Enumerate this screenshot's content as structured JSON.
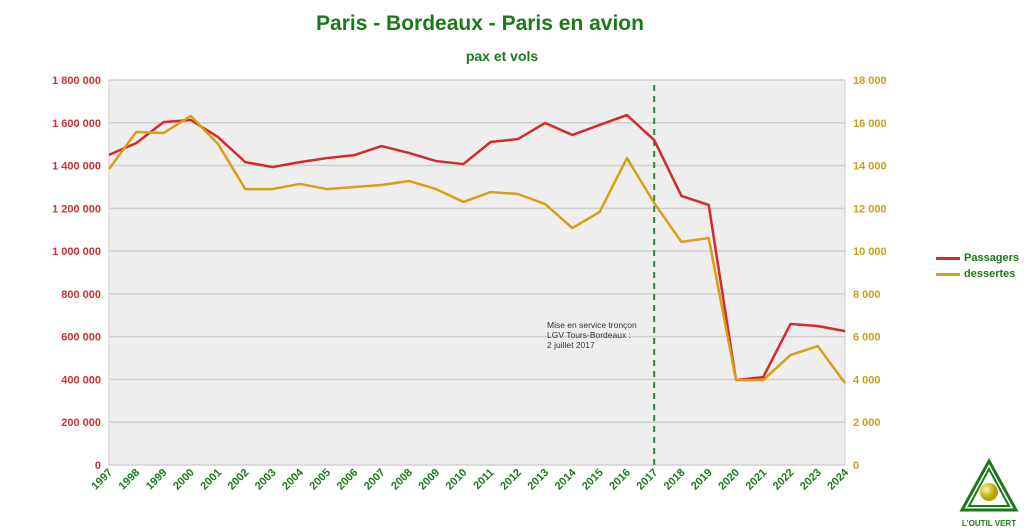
{
  "chart_data": {
    "type": "line",
    "title": "Paris - Bordeaux - Paris en avion",
    "subtitle": "pax et vols",
    "x": [
      "1997",
      "1998",
      "1999",
      "2000",
      "2001",
      "2002",
      "2003",
      "2004",
      "2005",
      "2006",
      "2007",
      "2008",
      "2009",
      "2010",
      "2011",
      "2012",
      "2013",
      "2014",
      "2015",
      "2016",
      "2017",
      "2018",
      "2019",
      "2020",
      "2021",
      "2022",
      "2023",
      "2024"
    ],
    "series": [
      {
        "name": "Passagers",
        "axis": "left",
        "color": "#d42a2a",
        "values": [
          1450000,
          1505000,
          1603000,
          1613000,
          1533000,
          1416000,
          1393000,
          1416000,
          1435000,
          1449000,
          1491000,
          1459000,
          1421000,
          1407000,
          1510000,
          1524000,
          1599000,
          1543000,
          1590000,
          1636000,
          1519000,
          1258000,
          1216000,
          397000,
          411000,
          659000,
          650000,
          626000
        ]
      },
      {
        "name": "dessertes",
        "axis": "right",
        "color": "#d4a017",
        "values": [
          13840,
          15570,
          15520,
          16320,
          15010,
          12900,
          12900,
          13140,
          12900,
          13000,
          13090,
          13280,
          12900,
          12300,
          12760,
          12670,
          12200,
          11080,
          11830,
          14350,
          12250,
          10430,
          10610,
          3970,
          3970,
          5140,
          5560,
          3830
        ]
      }
    ],
    "y_left": {
      "range": [
        0,
        1800000
      ],
      "ticks": [
        "0",
        "200 000",
        "400 000",
        "600 000",
        "800 000",
        "1 000 000",
        "1 200 000",
        "1 400 000",
        "1 600 000",
        "1 800 000"
      ],
      "color": "#c83232"
    },
    "y_right": {
      "range": [
        0,
        18000
      ],
      "ticks": [
        "0",
        "2 000",
        "4 000",
        "6 000",
        "8 000",
        "10 000",
        "12 000",
        "14 000",
        "16 000",
        "18 000"
      ],
      "color": "#c8a014"
    },
    "grid": true,
    "legend": "right",
    "annotation": {
      "x": "2017",
      "lines": [
        "Mise en service tronçon",
        "LGV Tours-Bordeaux :",
        "2 juillet 2017"
      ],
      "color": "#2a8a3a"
    }
  },
  "logo": {
    "text": "L'OUTIL VERT"
  }
}
